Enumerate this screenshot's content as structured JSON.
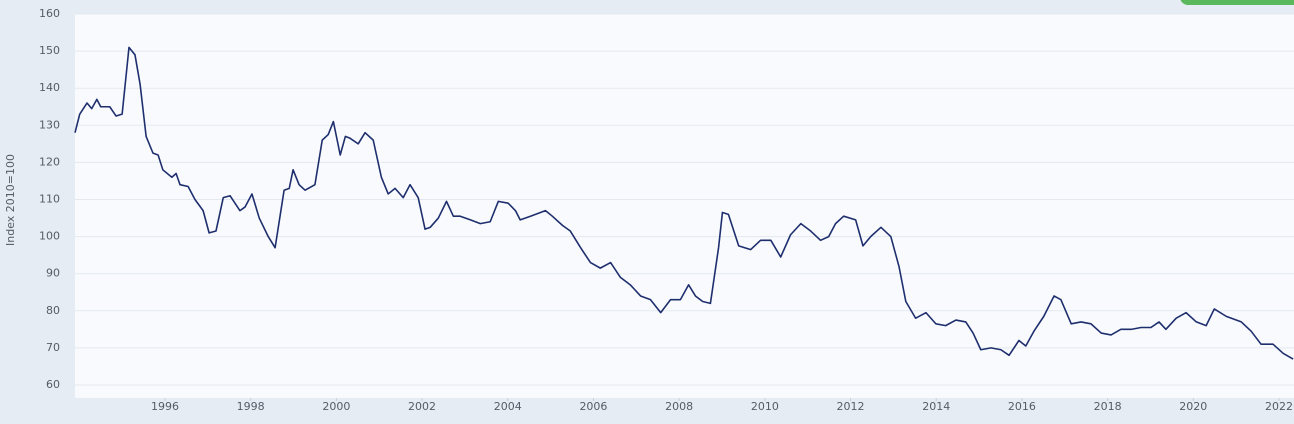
{
  "chart_data": {
    "type": "line",
    "y_label": "Index 2010=100",
    "color": "#1f2f6e",
    "grid": true,
    "xlim": [
      1993.9,
      2022.35
    ],
    "xticks": [
      1996,
      1998,
      2000,
      2002,
      2004,
      2006,
      2008,
      2010,
      2012,
      2014,
      2016,
      2018,
      2020,
      2022
    ],
    "ylim": [
      60,
      160
    ],
    "yticks": [
      60,
      70,
      80,
      90,
      100,
      110,
      120,
      130,
      140,
      150,
      160
    ],
    "x": [
      1993.9,
      1994.01,
      1994.18,
      1994.29,
      1994.41,
      1994.5,
      1994.71,
      1994.86,
      1995.0,
      1995.16,
      1995.3,
      1995.42,
      1995.56,
      1995.72,
      1995.84,
      1995.95,
      1996.16,
      1996.26,
      1996.35,
      1996.54,
      1996.7,
      1996.89,
      1997.03,
      1997.19,
      1997.36,
      1997.52,
      1997.75,
      1997.87,
      1998.03,
      1998.2,
      1998.41,
      1998.57,
      1998.78,
      1998.9,
      1998.99,
      1999.13,
      1999.27,
      1999.5,
      1999.67,
      1999.81,
      1999.93,
      2000.09,
      2000.21,
      2000.32,
      2000.51,
      2000.67,
      2000.86,
      2001.05,
      2001.21,
      2001.37,
      2001.56,
      2001.72,
      2001.91,
      2002.07,
      2002.19,
      2002.38,
      2002.57,
      2002.73,
      2002.89,
      2003.13,
      2003.36,
      2003.59,
      2003.78,
      2004.01,
      2004.18,
      2004.29,
      2004.53,
      2004.88,
      2005.04,
      2005.28,
      2005.46,
      2005.7,
      2005.93,
      2006.16,
      2006.4,
      2006.63,
      2006.86,
      2007.1,
      2007.33,
      2007.57,
      2007.8,
      2008.03,
      2008.22,
      2008.38,
      2008.55,
      2008.73,
      2008.92,
      2009.01,
      2009.15,
      2009.39,
      2009.67,
      2009.9,
      2010.14,
      2010.37,
      2010.6,
      2010.84,
      2011.07,
      2011.3,
      2011.49,
      2011.65,
      2011.84,
      2012.12,
      2012.29,
      2012.47,
      2012.71,
      2012.94,
      2013.13,
      2013.29,
      2013.52,
      2013.76,
      2013.99,
      2014.22,
      2014.46,
      2014.69,
      2014.86,
      2015.04,
      2015.28,
      2015.51,
      2015.7,
      2015.93,
      2016.09,
      2016.28,
      2016.51,
      2016.75,
      2016.91,
      2017.15,
      2017.38,
      2017.61,
      2017.85,
      2018.08,
      2018.31,
      2018.55,
      2018.78,
      2019.01,
      2019.2,
      2019.36,
      2019.6,
      2019.83,
      2020.07,
      2020.3,
      2020.49,
      2020.77,
      2021.12,
      2021.35,
      2021.58,
      2021.86,
      2022.1,
      2022.33
    ],
    "values": [
      128,
      133,
      136,
      134.5,
      137,
      135,
      135,
      132.5,
      133,
      151,
      149,
      141,
      127,
      122.5,
      122,
      118,
      116,
      117,
      114,
      113.5,
      110,
      107,
      101,
      101.5,
      110.5,
      111,
      107,
      108,
      111.5,
      105,
      100,
      97,
      112.5,
      113,
      118,
      114,
      112.5,
      114,
      126,
      127.5,
      131,
      122,
      127,
      126.5,
      125,
      128,
      126,
      116,
      111.5,
      113,
      110.5,
      114,
      110.5,
      102,
      102.5,
      105,
      109.5,
      105.5,
      105.5,
      104.5,
      103.5,
      104,
      109.5,
      109,
      107,
      104.5,
      105.5,
      107,
      105.5,
      103,
      101.5,
      97,
      93,
      91.5,
      93,
      89,
      87,
      84,
      83,
      79.5,
      83,
      83,
      87,
      84,
      82.5,
      82,
      97,
      106.5,
      106,
      97.5,
      96.5,
      99,
      99,
      94.5,
      100.5,
      103.5,
      101.5,
      99,
      100,
      103.5,
      105.5,
      104.5,
      97.5,
      100,
      102.5,
      100,
      92,
      82.5,
      78,
      79.5,
      76.5,
      76,
      77.5,
      77,
      74,
      69.5,
      70,
      69.5,
      68,
      72,
      70.5,
      74.5,
      78.5,
      84,
      83,
      76.5,
      77,
      76.5,
      74,
      73.5,
      75,
      75,
      75.5,
      75.5,
      77,
      75,
      78,
      79.5,
      77,
      76,
      80.5,
      78.5,
      77,
      74.5,
      71,
      71,
      68.5,
      67
    ]
  }
}
